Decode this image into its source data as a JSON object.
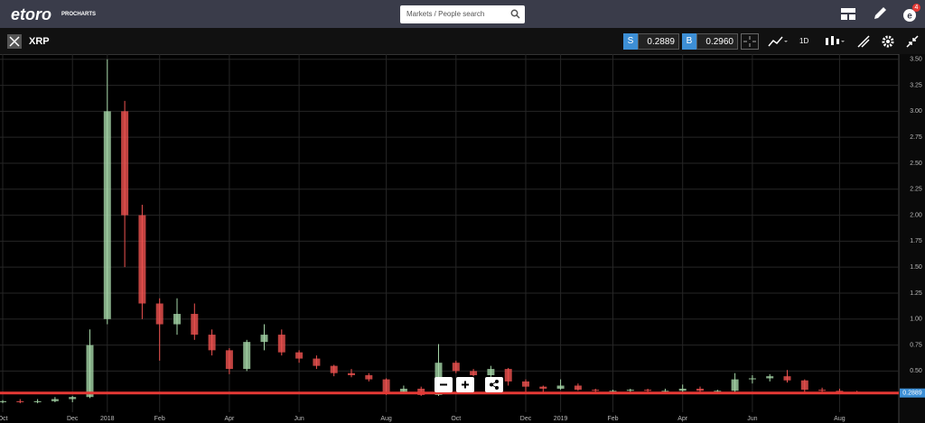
{
  "header": {
    "logo": "etoro",
    "logo_sub": "PROCHARTS",
    "search_placeholder": "Markets / People search",
    "notification_count": "4"
  },
  "toolbar": {
    "instrument": "XRP",
    "sell_label": "S",
    "sell_price": "0.2889",
    "buy_label": "B",
    "buy_price": "0.2960",
    "timeframe": "1D"
  },
  "chart_data": {
    "type": "candlestick",
    "categories": [
      "Oct",
      null,
      null,
      null,
      "Dec",
      null,
      "2018",
      null,
      null,
      "Feb",
      null,
      null,
      null,
      "Apr",
      null,
      null,
      null,
      "Jun",
      null,
      null,
      null,
      null,
      "Aug",
      null,
      null,
      null,
      "Oct",
      null,
      null,
      null,
      "Dec",
      null,
      "2019",
      null,
      null,
      "Feb",
      null,
      null,
      null,
      "Apr",
      null,
      null,
      null,
      "Jun",
      null,
      null,
      null,
      null,
      "Aug",
      null
    ],
    "open": [
      0.2,
      0.21,
      0.2,
      0.21,
      0.23,
      0.25,
      1.0,
      3.0,
      2.0,
      1.15,
      0.95,
      1.05,
      0.85,
      0.7,
      0.52,
      0.78,
      0.85,
      0.68,
      0.62,
      0.55,
      0.48,
      0.46,
      0.42,
      0.3,
      0.33,
      0.27,
      0.58,
      0.5,
      0.46,
      0.52,
      0.4,
      0.35,
      0.33,
      0.36,
      0.32,
      0.31,
      0.31,
      0.32,
      0.31,
      0.31,
      0.33,
      0.31,
      0.31,
      0.42,
      0.43,
      0.45,
      0.41,
      0.32,
      0.31,
      0.3
    ],
    "high": [
      0.22,
      0.23,
      0.23,
      0.25,
      0.26,
      0.9,
      3.5,
      3.1,
      2.1,
      1.2,
      1.2,
      1.15,
      0.9,
      0.72,
      0.8,
      0.95,
      0.9,
      0.7,
      0.65,
      0.56,
      0.52,
      0.48,
      0.43,
      0.36,
      0.35,
      0.76,
      0.6,
      0.52,
      0.55,
      0.53,
      0.42,
      0.36,
      0.42,
      0.38,
      0.33,
      0.32,
      0.33,
      0.33,
      0.33,
      0.37,
      0.35,
      0.32,
      0.48,
      0.46,
      0.47,
      0.51,
      0.42,
      0.34,
      0.33,
      0.31
    ],
    "low": [
      0.19,
      0.19,
      0.19,
      0.2,
      0.2,
      0.24,
      0.95,
      1.5,
      1.0,
      0.6,
      0.85,
      0.8,
      0.65,
      0.47,
      0.5,
      0.7,
      0.65,
      0.58,
      0.52,
      0.45,
      0.44,
      0.4,
      0.27,
      0.28,
      0.26,
      0.26,
      0.48,
      0.45,
      0.44,
      0.36,
      0.3,
      0.29,
      0.32,
      0.31,
      0.29,
      0.29,
      0.3,
      0.3,
      0.3,
      0.3,
      0.3,
      0.29,
      0.3,
      0.38,
      0.4,
      0.39,
      0.3,
      0.3,
      0.29,
      0.28
    ],
    "close": [
      0.21,
      0.2,
      0.21,
      0.23,
      0.25,
      0.75,
      3.0,
      2.0,
      1.15,
      0.95,
      1.05,
      0.85,
      0.7,
      0.52,
      0.78,
      0.85,
      0.68,
      0.62,
      0.55,
      0.48,
      0.46,
      0.42,
      0.3,
      0.33,
      0.27,
      0.58,
      0.5,
      0.46,
      0.52,
      0.4,
      0.35,
      0.33,
      0.36,
      0.32,
      0.31,
      0.31,
      0.32,
      0.31,
      0.31,
      0.33,
      0.31,
      0.31,
      0.42,
      0.43,
      0.45,
      0.41,
      0.32,
      0.31,
      0.3,
      0.29
    ],
    "up_color": "#a5d6a7",
    "down_color": "#ef5350",
    "ylim": [
      0,
      3.55
    ],
    "yticks": [
      {
        "value": 0.5,
        "label": "0.50"
      },
      {
        "value": 0.75,
        "label": "0.75"
      },
      {
        "value": 1,
        "label": "1.00"
      },
      {
        "value": 1.25,
        "label": "1.25"
      },
      {
        "value": 1.5,
        "label": "1.50"
      },
      {
        "value": 1.75,
        "label": "1.75"
      },
      {
        "value": 2,
        "label": "2.00"
      },
      {
        "value": 2.25,
        "label": "2.25"
      },
      {
        "value": 2.5,
        "label": "2.50"
      },
      {
        "value": 2.75,
        "label": "2.75"
      },
      {
        "value": 3,
        "label": "3.00"
      },
      {
        "value": 3.25,
        "label": "3.25"
      },
      {
        "value": 3.5,
        "label": "3.50"
      }
    ],
    "price_line": 0.2889,
    "price_line_color": "#e53935",
    "grid": true
  }
}
